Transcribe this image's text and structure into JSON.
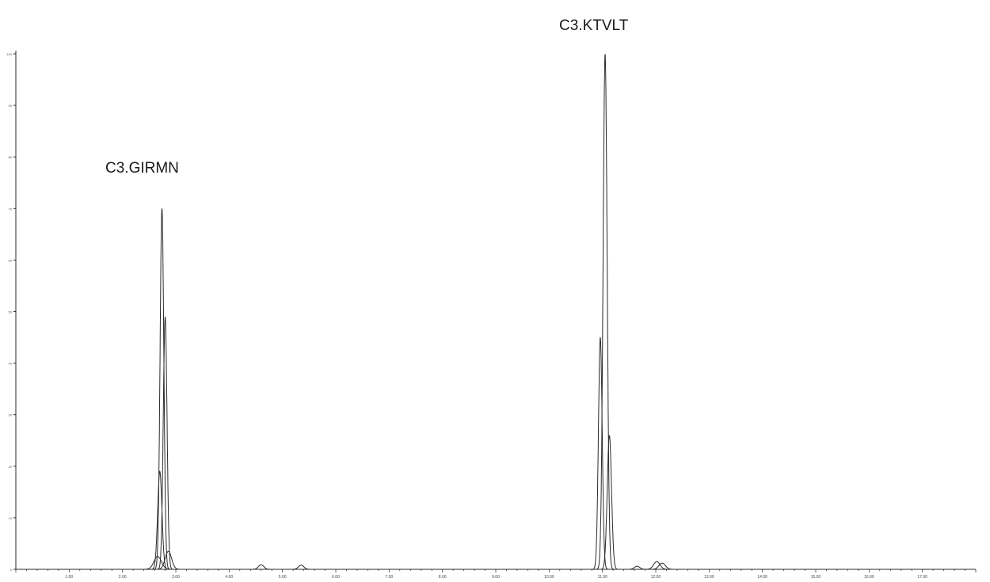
{
  "chart_data": {
    "type": "line",
    "title": "",
    "xlabel": "",
    "ylabel": "",
    "xlim": [
      0,
      18.0
    ],
    "ylim": [
      0,
      100
    ],
    "x_ticks": [
      "1.00",
      "2.00",
      "3.00",
      "4.00",
      "5.00",
      "6.00",
      "7.00",
      "8.00",
      "9.00",
      "10.00",
      "11.00",
      "12.00",
      "13.00",
      "14.00",
      "15.00",
      "16.00",
      "17.00"
    ],
    "y_ticks": [
      "100",
      "90",
      "80",
      "70",
      "60",
      "50",
      "40",
      "30",
      "20",
      "10",
      "0"
    ],
    "grid": false,
    "legend": "none",
    "line_color": "#2a2a2a",
    "annotations": [
      {
        "text": "C3.GIRMN",
        "x": 2.8,
        "y": 70
      },
      {
        "text": "C3.KTVLT",
        "x": 11.05,
        "y": 100
      }
    ],
    "series": [
      {
        "peaks": [
          {
            "x": 2.74,
            "height": 70,
            "width": 0.035
          },
          {
            "x": 11.05,
            "height": 100,
            "width": 0.038
          }
        ]
      },
      {
        "peaks": [
          {
            "x": 2.8,
            "height": 49,
            "width": 0.035
          },
          {
            "x": 10.96,
            "height": 45,
            "width": 0.035
          }
        ]
      },
      {
        "peaks": [
          {
            "x": 2.7,
            "height": 19,
            "width": 0.04
          },
          {
            "x": 11.13,
            "height": 26,
            "width": 0.04
          }
        ]
      },
      {
        "peaks": [
          {
            "x": 2.66,
            "height": 2.5,
            "width": 0.07
          },
          {
            "x": 12.02,
            "height": 1.5,
            "width": 0.06
          }
        ]
      },
      {
        "peaks": [
          {
            "x": 2.86,
            "height": 3.5,
            "width": 0.06
          },
          {
            "x": 12.12,
            "height": 1.2,
            "width": 0.06
          }
        ]
      },
      {
        "peaks": [
          {
            "x": 4.6,
            "height": 0.9,
            "width": 0.05
          },
          {
            "x": 5.35,
            "height": 0.8,
            "width": 0.05
          },
          {
            "x": 11.65,
            "height": 0.6,
            "width": 0.05
          }
        ]
      }
    ]
  }
}
